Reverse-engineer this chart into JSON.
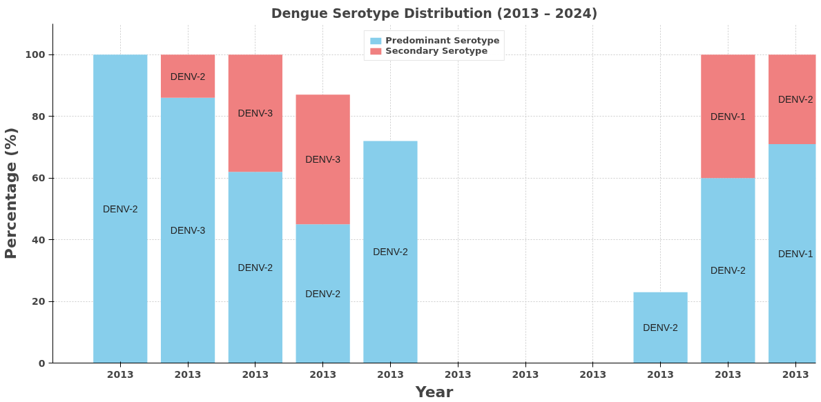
{
  "chart_data": {
    "type": "bar",
    "stacked": true,
    "title": "Dengue Serotype Distribution (2013 – 2024)",
    "xlabel": "Year",
    "ylabel": "Percentage (%)",
    "categories": [
      "2013",
      "2013",
      "2013",
      "2013",
      "2013",
      "2013",
      "2013",
      "2013",
      "2013",
      "2013",
      "2013"
    ],
    "series": [
      {
        "name": "Predominant Serotype",
        "color": "#87ceeb",
        "values": [
          100,
          86,
          62,
          45,
          72,
          null,
          null,
          null,
          23,
          60,
          71
        ],
        "value_labels": [
          "DENV-2",
          "DENV-3",
          "DENV-2",
          "DENV-2",
          "DENV-2",
          null,
          null,
          null,
          "DENV-2",
          "DENV-2",
          "DENV-1"
        ]
      },
      {
        "name": "Secondary Serotype",
        "color": "#f08080",
        "values": [
          null,
          14,
          38,
          42,
          null,
          null,
          null,
          null,
          null,
          40,
          29
        ],
        "value_labels": [
          null,
          "DENV-2",
          "DENV-3",
          "DENV-3",
          null,
          null,
          null,
          null,
          null,
          "DENV-1",
          "DENV-2"
        ]
      }
    ],
    "ylim": [
      0,
      110
    ],
    "yticks": [
      0,
      20,
      40,
      60,
      80,
      100
    ],
    "grid": true,
    "legend": "top"
  }
}
